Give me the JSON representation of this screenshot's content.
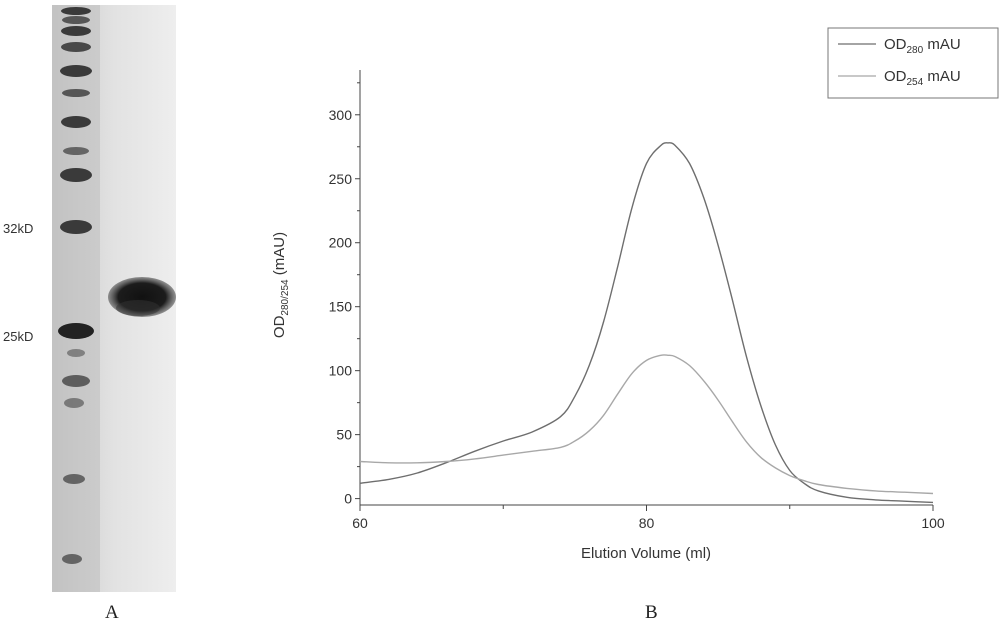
{
  "panel_a": {
    "letter": "A",
    "markers": [
      {
        "label": "32kD"
      },
      {
        "label": "25kD"
      }
    ]
  },
  "panel_b": {
    "letter": "B"
  },
  "chart_data": {
    "type": "line",
    "xlabel": "Elution Volume (ml)",
    "ylabel_main": "OD",
    "ylabel_sub": "280/254",
    "ylabel_unit": " (mAU)",
    "xlim": [
      60,
      100
    ],
    "ylim": [
      -5,
      335
    ],
    "xticks": [
      60,
      80,
      100
    ],
    "yticks": [
      0,
      50,
      100,
      150,
      200,
      250,
      300
    ],
    "grid": false,
    "legend_position": "top-right",
    "x": [
      60,
      62,
      64,
      66,
      68,
      70,
      72,
      74,
      75,
      76,
      77,
      78,
      79,
      80,
      81,
      81.5,
      82,
      83,
      84,
      85,
      86,
      87,
      88,
      89,
      90,
      91,
      92,
      94,
      96,
      98,
      100
    ],
    "series": [
      {
        "name_main": "OD",
        "name_sub": "280",
        "name_unit": " mAU",
        "color": "#6e6e6e",
        "values": [
          12,
          15,
          20,
          28,
          37,
          45,
          52,
          64,
          80,
          104,
          138,
          182,
          228,
          262,
          276,
          278,
          276,
          262,
          235,
          198,
          155,
          110,
          72,
          42,
          22,
          12,
          6,
          1,
          -1,
          -2,
          -3
        ]
      },
      {
        "name_main": "OD",
        "name_sub": "254",
        "name_unit": " mAU",
        "color": "#a8a8a8",
        "values": [
          29,
          28,
          28,
          29,
          31,
          34,
          37,
          40,
          45,
          53,
          65,
          82,
          98,
          108,
          112,
          112,
          111,
          104,
          92,
          77,
          60,
          44,
          32,
          24,
          18,
          14,
          11,
          8,
          6,
          5,
          4
        ]
      }
    ]
  }
}
